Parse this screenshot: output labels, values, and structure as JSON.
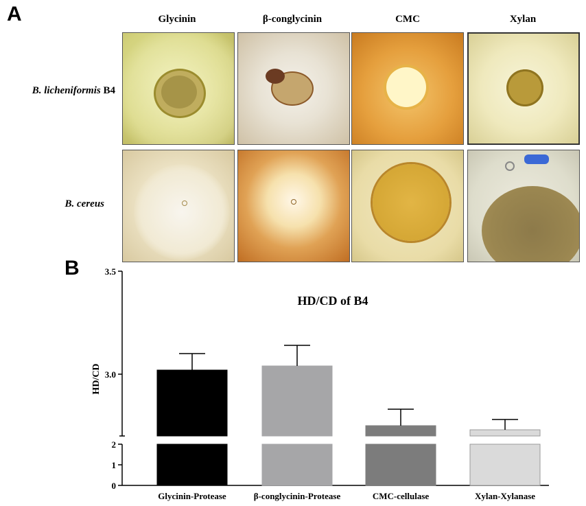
{
  "panel_a": {
    "letter": "A",
    "columns": [
      "Glycinin",
      "β-conglycinin",
      "CMC",
      "Xylan"
    ],
    "rows": [
      {
        "species": "B. licheniformis",
        "strain": "B4"
      },
      {
        "species": "B. cereus",
        "strain": ""
      }
    ]
  },
  "panel_b": {
    "letter": "B"
  },
  "chart_data": {
    "type": "bar",
    "title": "HD/CD of B4",
    "xlabel": "",
    "ylabel": "HD/CD",
    "categories": [
      "Glycinin-Protease",
      "β-conglycinin-Protease",
      "CMC-cellulase",
      "Xylan-Xylanase"
    ],
    "values": [
      3.02,
      3.04,
      2.75,
      2.73
    ],
    "error_upper": [
      3.1,
      3.14,
      2.83,
      2.78
    ],
    "colors": [
      "#000000",
      "#a6a6a8",
      "#7c7c7c",
      "#dadada"
    ],
    "y_axis_broken": true,
    "y_segments": [
      {
        "range": [
          0,
          2
        ],
        "ticks": [
          "0",
          "1",
          "2"
        ]
      },
      {
        "range": [
          2.7,
          3.5
        ],
        "ticks": [
          "3.0",
          "3.5"
        ]
      }
    ],
    "grid": false,
    "legend": "none"
  }
}
